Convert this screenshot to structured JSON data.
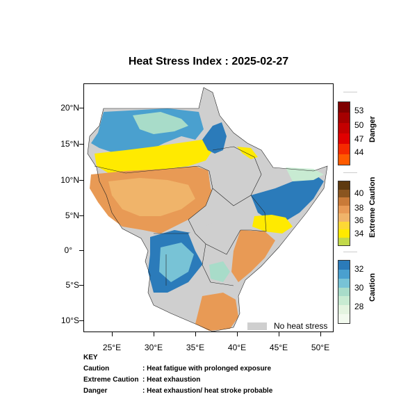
{
  "title": "Heat Stress Index : 2025-02-27",
  "axes": {
    "lat_ticks": [
      "20°N",
      "15°N",
      "10°N",
      "5°N",
      "0°",
      "5°S",
      "10°S"
    ],
    "lon_ticks": [
      "25°E",
      "30°E",
      "35°E",
      "40°E",
      "45°E",
      "50°E"
    ]
  },
  "no_heat_stress_label": "No heat stress",
  "colorbars": {
    "danger": {
      "title": "Danger",
      "labels": [
        "53",
        "50",
        "47",
        "44"
      ],
      "colors": [
        "#7f0000",
        "#a50000",
        "#c40000",
        "#e00000",
        "#f52a00",
        "#ff5a00"
      ]
    },
    "extreme_caution": {
      "title": "Extreme Caution",
      "labels": [
        "40",
        "38",
        "36",
        "34"
      ],
      "colors": [
        "#5e3a10",
        "#8a5520",
        "#c97a38",
        "#e89a55",
        "#f0b46a",
        "#fdd835",
        "#ffea00",
        "#c2d94a"
      ]
    },
    "caution": {
      "title": "Caution",
      "labels": [
        "32",
        "30",
        "28"
      ],
      "colors": [
        "#2b7bba",
        "#4aa0cf",
        "#78c3d6",
        "#a8dcc9",
        "#c8ebd2",
        "#e4f4e0",
        "#f2faee"
      ]
    }
  },
  "key": {
    "heading": "KEY",
    "rows": [
      {
        "term": "Caution",
        "desc": ": Heat fatigue with prolonged exposure"
      },
      {
        "term": "Extreme Caution",
        "desc": ": Heat exhaustion"
      },
      {
        "term": "Danger",
        "desc": ": Heat exhaustion/ heat stroke probable"
      }
    ]
  }
}
